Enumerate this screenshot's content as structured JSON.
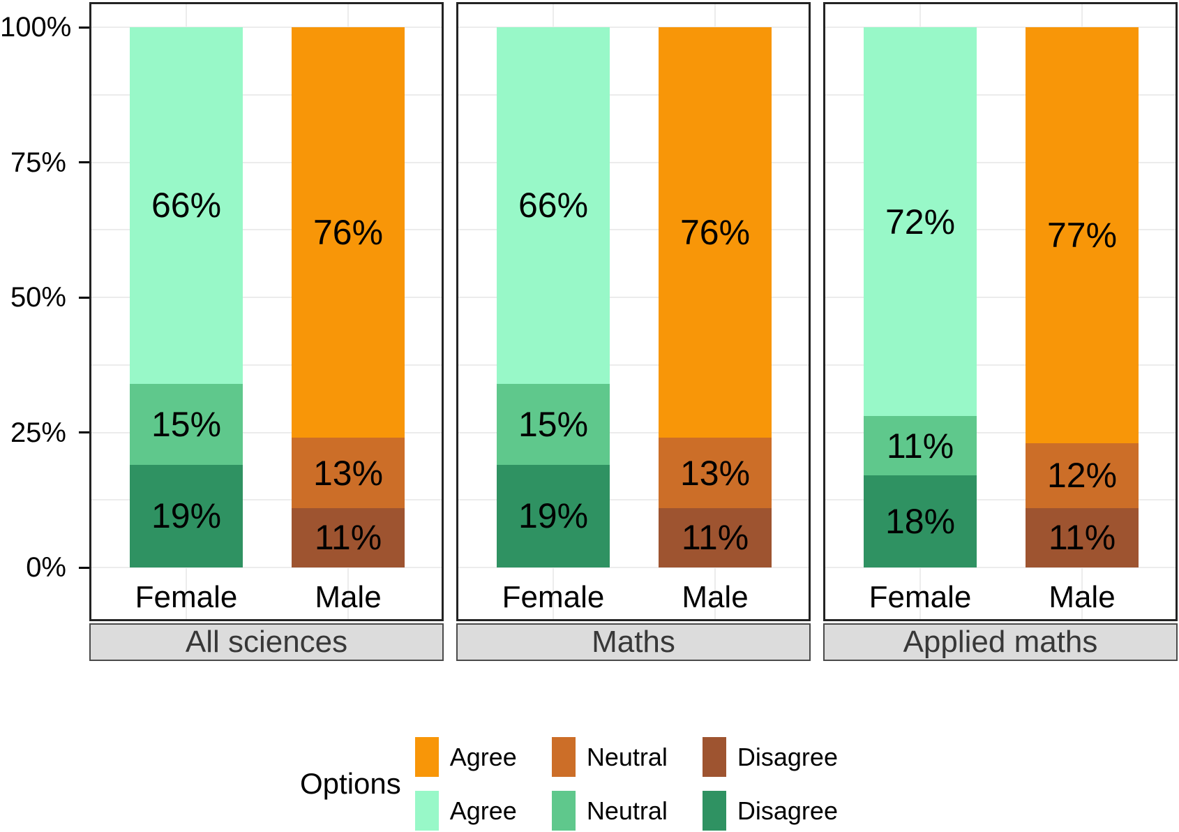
{
  "chart_data": {
    "type": "bar",
    "stacked": true,
    "unit": "percent",
    "y_axis": {
      "ticks": [
        "0%",
        "25%",
        "50%",
        "75%",
        "100%"
      ],
      "range": [
        0,
        100
      ],
      "grid": true
    },
    "x_categories": [
      "Female",
      "Male"
    ],
    "facets": [
      {
        "label": "All sciences",
        "groups": [
          {
            "label": "Female",
            "palette": "green",
            "segments": [
              {
                "option": "Agree",
                "value": 66,
                "label": "66%"
              },
              {
                "option": "Neutral",
                "value": 15,
                "label": "15%"
              },
              {
                "option": "Disagree",
                "value": 19,
                "label": "19%"
              }
            ]
          },
          {
            "label": "Male",
            "palette": "orange",
            "segments": [
              {
                "option": "Agree",
                "value": 76,
                "label": "76%"
              },
              {
                "option": "Neutral",
                "value": 13,
                "label": "13%"
              },
              {
                "option": "Disagree",
                "value": 11,
                "label": "11%"
              }
            ]
          }
        ]
      },
      {
        "label": "Maths",
        "groups": [
          {
            "label": "Female",
            "palette": "green",
            "segments": [
              {
                "option": "Agree",
                "value": 66,
                "label": "66%"
              },
              {
                "option": "Neutral",
                "value": 15,
                "label": "15%"
              },
              {
                "option": "Disagree",
                "value": 19,
                "label": "19%"
              }
            ]
          },
          {
            "label": "Male",
            "palette": "orange",
            "segments": [
              {
                "option": "Agree",
                "value": 76,
                "label": "76%"
              },
              {
                "option": "Neutral",
                "value": 13,
                "label": "13%"
              },
              {
                "option": "Disagree",
                "value": 11,
                "label": "11%"
              }
            ]
          }
        ]
      },
      {
        "label": "Applied maths",
        "groups": [
          {
            "label": "Female",
            "palette": "green",
            "segments": [
              {
                "option": "Agree",
                "value": 72,
                "label": "72%"
              },
              {
                "option": "Neutral",
                "value": 11,
                "label": "11%"
              },
              {
                "option": "Disagree",
                "value": 18,
                "label": "18%"
              }
            ]
          },
          {
            "label": "Male",
            "palette": "orange",
            "segments": [
              {
                "option": "Agree",
                "value": 77,
                "label": "77%"
              },
              {
                "option": "Neutral",
                "value": 12,
                "label": "12%"
              },
              {
                "option": "Disagree",
                "value": 11,
                "label": "11%"
              }
            ]
          }
        ]
      }
    ],
    "legend": {
      "title": "Options",
      "rows": [
        {
          "palette": "orange",
          "entries": [
            {
              "option": "Agree",
              "label": "Agree"
            },
            {
              "option": "Neutral",
              "label": "Neutral"
            },
            {
              "option": "Disagree",
              "label": "Disagree"
            }
          ]
        },
        {
          "palette": "green",
          "entries": [
            {
              "option": "Agree",
              "label": "Agree"
            },
            {
              "option": "Neutral",
              "label": "Neutral"
            },
            {
              "option": "Disagree",
              "label": "Disagree"
            }
          ]
        }
      ]
    },
    "colors": {
      "orange": {
        "Agree": "#f89608",
        "Neutral": "#cc6e28",
        "Disagree": "#9e5430"
      },
      "green": {
        "Agree": "#98f8c8",
        "Neutral": "#5fc88c",
        "Disagree": "#2f9262"
      },
      "grid": "#ececec",
      "panel_border": "#232323",
      "strip_fill": "#dcdcdc",
      "strip_text": "#383838"
    }
  }
}
